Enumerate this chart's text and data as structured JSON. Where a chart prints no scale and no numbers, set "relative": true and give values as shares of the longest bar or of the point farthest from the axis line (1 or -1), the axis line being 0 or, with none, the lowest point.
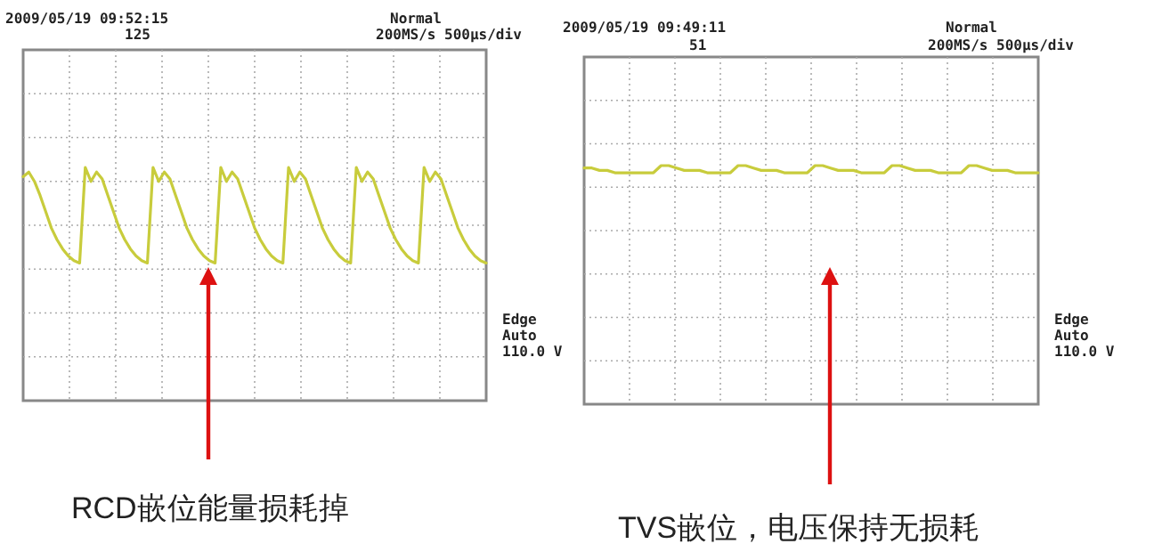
{
  "chart_data": [
    {
      "type": "line",
      "relative": true,
      "grid": true,
      "categories": [
        null,
        null,
        null,
        null,
        null,
        null,
        null,
        null,
        null,
        null,
        null,
        null,
        null,
        null,
        null,
        null,
        null,
        null,
        null,
        null,
        null,
        null,
        null,
        null,
        null,
        null,
        null,
        null,
        null,
        null,
        null,
        null,
        null,
        null,
        null,
        null,
        null,
        null,
        null,
        null,
        null,
        null,
        null,
        null,
        null,
        null,
        null,
        null,
        null,
        null,
        null,
        null,
        null,
        null,
        null,
        null,
        null,
        null,
        null,
        null,
        null,
        null,
        null,
        null,
        null,
        null,
        null,
        null,
        null,
        null,
        null,
        null,
        null,
        null,
        null,
        null,
        null,
        null,
        null,
        null,
        null,
        null,
        null
      ],
      "series": [
        {
          "color": "#c8cc3c",
          "values": [
            0.96,
            0.98,
            0.94,
            0.88,
            0.81,
            0.74,
            0.69,
            0.65,
            0.62,
            0.6,
            0.59,
            1,
            0.94,
            0.98,
            0.95,
            0.88,
            0.81,
            0.74,
            0.69,
            0.65,
            0.62,
            0.6,
            0.59,
            1,
            0.94,
            0.98,
            0.95,
            0.88,
            0.81,
            0.74,
            0.69,
            0.65,
            0.62,
            0.6,
            0.59,
            1,
            0.94,
            0.98,
            0.95,
            0.88,
            0.81,
            0.74,
            0.69,
            0.65,
            0.62,
            0.6,
            0.59,
            1,
            0.94,
            0.98,
            0.95,
            0.88,
            0.81,
            0.74,
            0.69,
            0.65,
            0.62,
            0.6,
            0.59,
            1,
            0.94,
            0.98,
            0.95,
            0.88,
            0.81,
            0.74,
            0.69,
            0.65,
            0.62,
            0.6,
            0.59,
            1,
            0.94,
            0.98,
            0.95,
            0.88,
            0.81,
            0.74,
            0.69,
            0.65,
            0.62,
            0.6,
            0.59
          ]
        }
      ],
      "annotations": [
        "2009/05/19 09:52:15",
        "125",
        "Normal",
        "200MS/s 500μs/div",
        "Edge",
        "Auto",
        "110.0 V",
        "RCD嵌位能量损耗掉"
      ]
    },
    {
      "type": "line",
      "relative": true,
      "grid": true,
      "categories": [
        null,
        null,
        null,
        null,
        null,
        null,
        null,
        null,
        null,
        null,
        null,
        null,
        null,
        null,
        null,
        null,
        null,
        null,
        null,
        null,
        null,
        null,
        null,
        null,
        null,
        null,
        null,
        null,
        null,
        null,
        null,
        null,
        null,
        null,
        null,
        null,
        null,
        null,
        null,
        null,
        null,
        null,
        null,
        null,
        null,
        null,
        null,
        null,
        null,
        null,
        null,
        null,
        null,
        null,
        null,
        null,
        null,
        null,
        null,
        null
      ],
      "series": [
        {
          "color": "#c8cc3c",
          "values": [
            0.99,
            0.99,
            0.98,
            0.98,
            0.97,
            0.97,
            0.97,
            0.97,
            0.97,
            0.97,
            1,
            1,
            0.99,
            0.98,
            0.98,
            0.98,
            0.97,
            0.97,
            0.97,
            0.97,
            1,
            1,
            0.99,
            0.98,
            0.98,
            0.98,
            0.97,
            0.97,
            0.97,
            0.97,
            1,
            1,
            0.99,
            0.98,
            0.98,
            0.98,
            0.97,
            0.97,
            0.97,
            0.97,
            1,
            1,
            0.99,
            0.98,
            0.98,
            0.98,
            0.97,
            0.97,
            0.97,
            0.97,
            1,
            1,
            0.99,
            0.98,
            0.98,
            0.98,
            0.97,
            0.97,
            0.97,
            0.97
          ]
        }
      ],
      "annotations": [
        "2009/05/19 09:49:11",
        "51",
        "Normal",
        "200MS/s 500μs/div",
        "Edge",
        "Auto",
        "110.0 V",
        "TVS嵌位，电压保持无损耗"
      ]
    }
  ]
}
